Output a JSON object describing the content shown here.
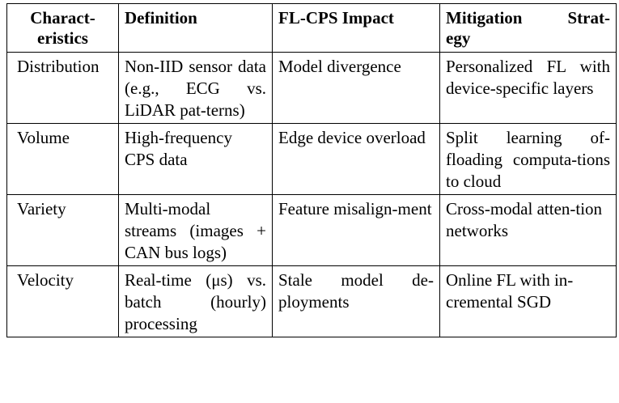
{
  "table": {
    "headers": [
      "Charact-\neristics",
      "Definition",
      "FL-CPS Impact",
      "Mitigation Strat-\negy"
    ],
    "rows": [
      {
        "characteristic": "Distribution",
        "definition": "Non-IID sensor data (e.g., ECG vs. LiDAR pat-terns)",
        "impact": "Model divergence",
        "mitigation": "Personalized FL with device-specific layers"
      },
      {
        "characteristic": "Volume",
        "definition": "High-frequency CPS data",
        "impact": "Edge device overload",
        "mitigation": "Split learning of-floading computa-tions to cloud"
      },
      {
        "characteristic": "Variety",
        "definition": "Multi-modal streams (images + CAN bus logs)",
        "impact": "Feature misalign-ment",
        "mitigation": "Cross-modal atten-tion networks"
      },
      {
        "characteristic": "Velocity",
        "definition": "Real-time (μs) vs. batch (hourly) processing",
        "impact": "Stale model de-ployments",
        "mitigation": "Online FL with in-cremental SGD"
      }
    ]
  }
}
